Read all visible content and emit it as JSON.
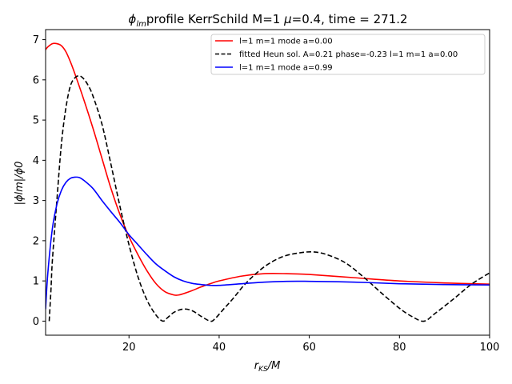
{
  "chart_data": {
    "type": "line",
    "title_main": "profile KerrSchild M=1 ",
    "title_mu_eq": "=0.4, time = 271.2",
    "title_phi": "ϕ",
    "title_phi_sub": "lm",
    "title_mu": "μ",
    "xlabel_r": "r",
    "xlabel_sub": "KS",
    "xlabel_tail": "/M",
    "ylabel_text": "|ϕlm|/ϕ0",
    "xlim": [
      1.5,
      100
    ],
    "ylim": [
      -0.35,
      7.25
    ],
    "xticks": [
      "20",
      "40",
      "60",
      "80",
      "100"
    ],
    "xtick_values": [
      20,
      40,
      60,
      80,
      100
    ],
    "yticks": [
      "0",
      "1",
      "2",
      "3",
      "4",
      "5",
      "6",
      "7"
    ],
    "ytick_values": [
      0,
      1,
      2,
      3,
      4,
      5,
      6,
      7
    ],
    "legend_position": "upper-right",
    "series": [
      {
        "name": "l=1 m=1 mode a=0.00",
        "color": "#ff0000",
        "style": "solid",
        "x": [
          1.5,
          2,
          3,
          4,
          5,
          6,
          7,
          8,
          10,
          12,
          14,
          16,
          18,
          20,
          22,
          24,
          26,
          28,
          30,
          31,
          32,
          34,
          36,
          38,
          40,
          45,
          50,
          55,
          60,
          70,
          80,
          90,
          100
        ],
        "y": [
          6.75,
          6.82,
          6.9,
          6.9,
          6.85,
          6.7,
          6.45,
          6.15,
          5.5,
          4.8,
          4.05,
          3.3,
          2.65,
          2.1,
          1.65,
          1.25,
          0.93,
          0.73,
          0.65,
          0.65,
          0.68,
          0.76,
          0.85,
          0.93,
          1.0,
          1.12,
          1.18,
          1.18,
          1.16,
          1.08,
          1.0,
          0.95,
          0.92
        ]
      },
      {
        "name": "fitted Heun sol. A=0.21 phase=-0.23 l=1 m=1 a=0.00",
        "color": "#000000",
        "style": "dashed",
        "x": [
          2.3,
          2.7,
          3,
          4,
          5,
          6,
          7,
          8,
          9,
          10,
          11,
          12,
          14,
          16,
          18,
          20,
          22,
          24,
          26,
          27.5,
          28.5,
          30,
          32,
          34,
          36,
          38,
          39,
          41,
          43,
          46,
          50,
          54,
          58,
          61,
          64,
          68,
          72,
          76,
          80,
          83,
          85.5,
          88,
          92,
          96,
          100
        ],
        "y": [
          0.0,
          0.8,
          1.5,
          3.0,
          4.4,
          5.3,
          5.85,
          6.05,
          6.1,
          6.02,
          5.85,
          5.6,
          4.9,
          3.9,
          2.85,
          1.9,
          1.1,
          0.52,
          0.15,
          0.0,
          0.08,
          0.22,
          0.3,
          0.26,
          0.12,
          0.0,
          0.05,
          0.3,
          0.55,
          0.95,
          1.35,
          1.6,
          1.7,
          1.72,
          1.65,
          1.45,
          1.1,
          0.7,
          0.32,
          0.1,
          0.0,
          0.2,
          0.55,
          0.92,
          1.2
        ]
      },
      {
        "name": "l=1 m=1 mode a=0.99",
        "color": "#0000ff",
        "style": "solid",
        "x": [
          1.5,
          2,
          3,
          4,
          5,
          6,
          7,
          8,
          9,
          10,
          12,
          14,
          16,
          18,
          20,
          22,
          24,
          26,
          28,
          30,
          32,
          34,
          36,
          38,
          40,
          45,
          50,
          55,
          60,
          70,
          80,
          90,
          100
        ],
        "y": [
          0.3,
          1.2,
          2.3,
          2.9,
          3.25,
          3.45,
          3.55,
          3.58,
          3.57,
          3.5,
          3.3,
          3.0,
          2.72,
          2.45,
          2.15,
          1.9,
          1.65,
          1.42,
          1.25,
          1.1,
          1.0,
          0.94,
          0.91,
          0.89,
          0.89,
          0.93,
          0.97,
          0.99,
          0.99,
          0.97,
          0.93,
          0.91,
          0.9
        ]
      }
    ]
  }
}
